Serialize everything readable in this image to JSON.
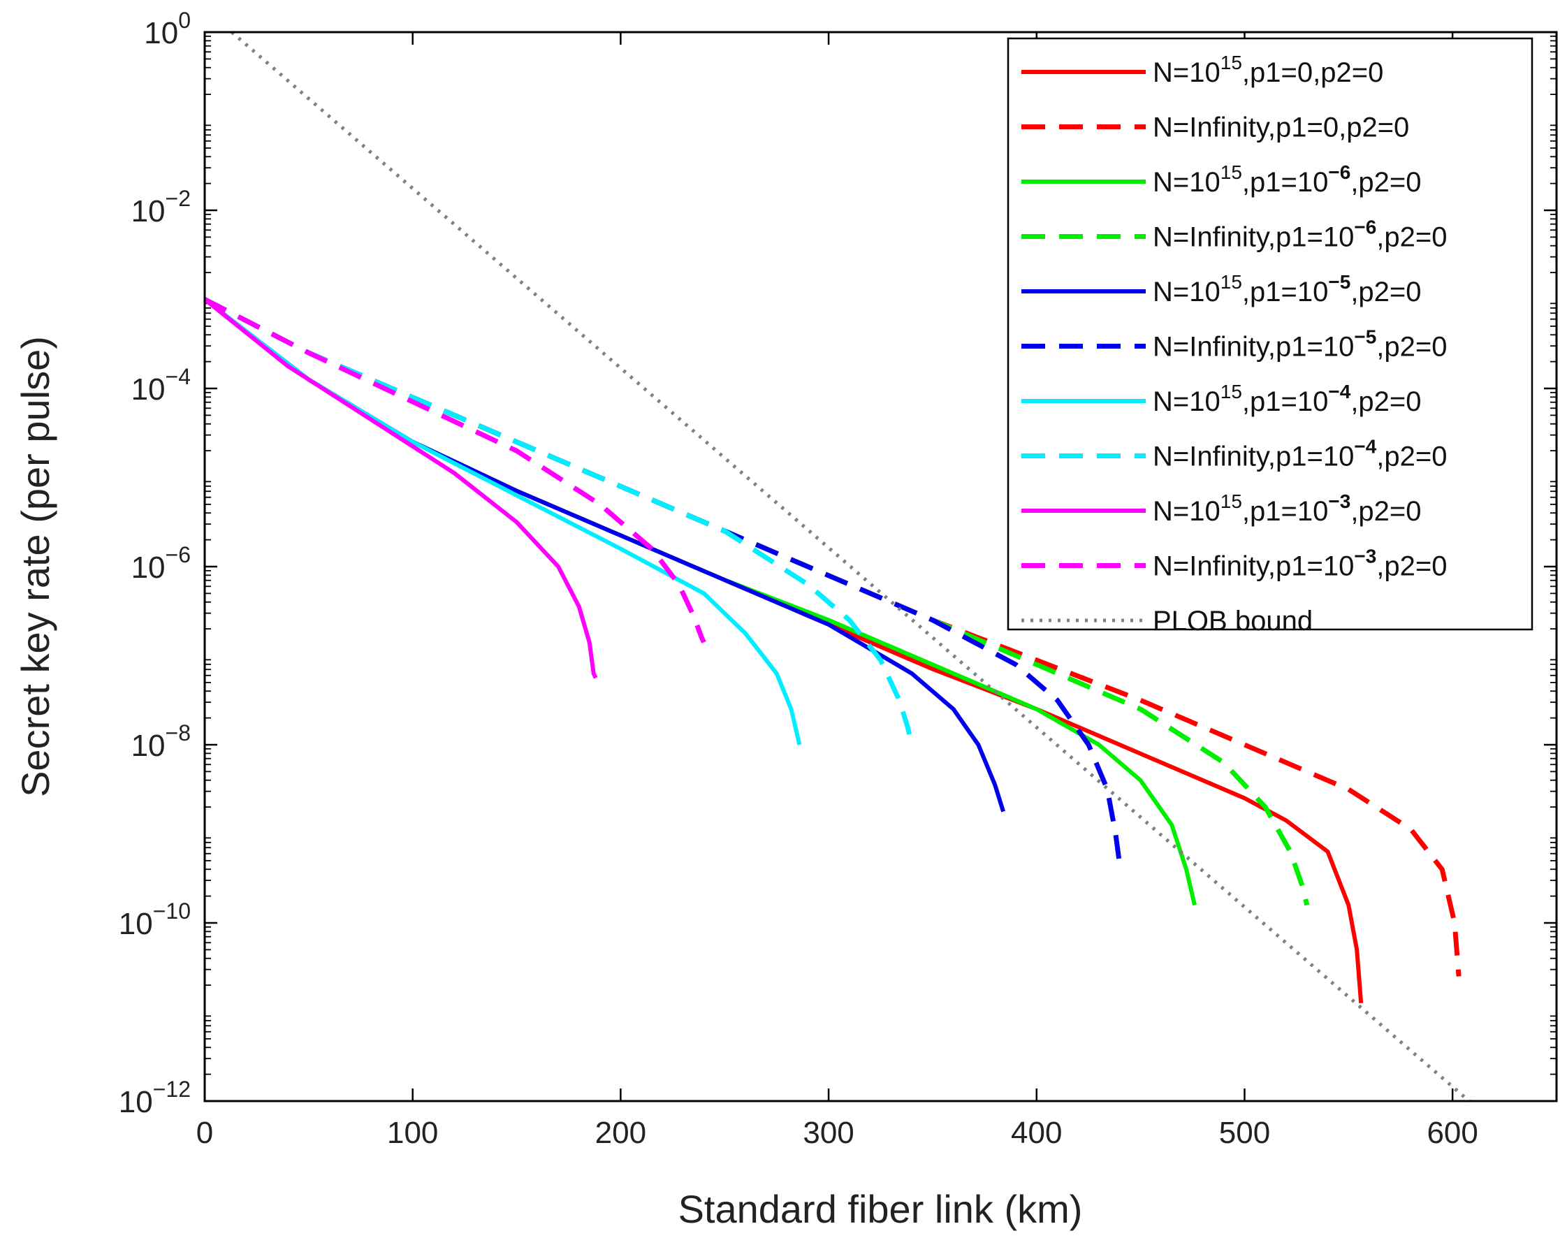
{
  "chart_data": {
    "type": "line",
    "xlabel": "Standard fiber link (km)",
    "ylabel": "Secret key rate (per pulse)",
    "xlim": [
      0,
      650
    ],
    "ylim_log10": [
      -12,
      0
    ],
    "xticks": [
      0,
      100,
      200,
      300,
      400,
      500,
      600
    ],
    "xtick_labels": [
      "0",
      "100",
      "200",
      "300",
      "400",
      "500",
      "600"
    ],
    "yticks": [
      {
        "base": "10",
        "exp": "0",
        "value_log10": 0
      },
      {
        "base": "10",
        "exp": "−2",
        "value_log10": -2
      },
      {
        "base": "10",
        "exp": "−4",
        "value_log10": -4
      },
      {
        "base": "10",
        "exp": "−6",
        "value_log10": -6
      },
      {
        "base": "10",
        "exp": "−8",
        "value_log10": -8
      },
      {
        "base": "10",
        "exp": "−10",
        "value_log10": -10
      },
      {
        "base": "10",
        "exp": "−12",
        "value_log10": -12
      }
    ],
    "legend_position": "top-right",
    "series": [
      {
        "name": "N=10^15,p1=0,p2=0",
        "color": "#ff0000",
        "dash": "solid",
        "label_parts": [
          {
            "t": "N=10"
          },
          {
            "t": "15",
            "sup": true
          },
          {
            "t": ",p1=0,p2=0"
          }
        ],
        "x": [
          0,
          50,
          100,
          150,
          200,
          250,
          300,
          350,
          400,
          450,
          500,
          520,
          540,
          550,
          554,
          556
        ],
        "y_log10": [
          -3.0,
          -3.9,
          -4.6,
          -5.15,
          -5.65,
          -6.15,
          -6.65,
          -7.15,
          -7.6,
          -8.1,
          -8.6,
          -8.85,
          -9.2,
          -9.8,
          -10.3,
          -10.9
        ]
      },
      {
        "name": "N=Infinity,p1=0,p2=0",
        "color": "#ff0000",
        "dash": "dashed",
        "label_parts": [
          {
            "t": "N=Infinity,p1=0,p2=0"
          }
        ],
        "x": [
          0,
          50,
          100,
          150,
          200,
          250,
          300,
          350,
          400,
          450,
          500,
          550,
          580,
          595,
          601,
          603
        ],
        "y_log10": [
          -3.0,
          -3.6,
          -4.1,
          -4.6,
          -5.1,
          -5.6,
          -6.1,
          -6.6,
          -7.05,
          -7.5,
          -8.0,
          -8.5,
          -8.95,
          -9.4,
          -10.0,
          -10.6
        ]
      },
      {
        "name": "N=10^15,p1=10^-6,p2=0",
        "color": "#00ee00",
        "dash": "solid",
        "label_parts": [
          {
            "t": "N=10"
          },
          {
            "t": "15",
            "sup": true
          },
          {
            "t": ",p1=10"
          },
          {
            "t": "−6",
            "sup": true,
            "bold": true
          },
          {
            "t": ",p2=0"
          }
        ],
        "x": [
          0,
          50,
          100,
          150,
          200,
          250,
          300,
          350,
          400,
          430,
          450,
          465,
          472,
          476
        ],
        "y_log10": [
          -3.0,
          -3.9,
          -4.6,
          -5.15,
          -5.65,
          -6.15,
          -6.6,
          -7.1,
          -7.6,
          -8.0,
          -8.4,
          -8.9,
          -9.4,
          -9.8
        ]
      },
      {
        "name": "N=Infinity,p1=10^-6,p2=0",
        "color": "#00ee00",
        "dash": "dashed",
        "label_parts": [
          {
            "t": "N=Infinity,p1=10"
          },
          {
            "t": "−6",
            "sup": true,
            "bold": true
          },
          {
            "t": ",p2=0"
          }
        ],
        "x": [
          0,
          50,
          100,
          150,
          200,
          250,
          300,
          350,
          400,
          450,
          490,
          510,
          522,
          528,
          530
        ],
        "y_log10": [
          -3.0,
          -3.6,
          -4.1,
          -4.6,
          -5.1,
          -5.6,
          -6.1,
          -6.6,
          -7.1,
          -7.6,
          -8.2,
          -8.7,
          -9.2,
          -9.6,
          -9.8
        ]
      },
      {
        "name": "N=10^15,p1=10^-5,p2=0",
        "color": "#0000ee",
        "dash": "solid",
        "label_parts": [
          {
            "t": "N=10"
          },
          {
            "t": "15",
            "sup": true
          },
          {
            "t": ",p1=10"
          },
          {
            "t": "−5",
            "sup": true,
            "bold": true
          },
          {
            "t": ",p2=0"
          }
        ],
        "x": [
          0,
          50,
          100,
          150,
          200,
          250,
          300,
          340,
          360,
          372,
          380,
          384
        ],
        "y_log10": [
          -3.0,
          -3.9,
          -4.6,
          -5.15,
          -5.65,
          -6.15,
          -6.65,
          -7.2,
          -7.6,
          -8.0,
          -8.45,
          -8.75
        ]
      },
      {
        "name": "N=Infinity,p1=10^-5,p2=0",
        "color": "#0000ee",
        "dash": "dashed",
        "label_parts": [
          {
            "t": "N=Infinity,p1=10"
          },
          {
            "t": "−5",
            "sup": true,
            "bold": true
          },
          {
            "t": ",p2=0"
          }
        ],
        "x": [
          0,
          50,
          100,
          150,
          200,
          250,
          300,
          350,
          390,
          410,
          425,
          434,
          438,
          440
        ],
        "y_log10": [
          -3.0,
          -3.6,
          -4.1,
          -4.6,
          -5.1,
          -5.6,
          -6.1,
          -6.6,
          -7.1,
          -7.5,
          -8.0,
          -8.5,
          -9.0,
          -9.35
        ]
      },
      {
        "name": "N=10^15,p1=10^-4,p2=0",
        "color": "#00eeff",
        "dash": "solid",
        "label_parts": [
          {
            "t": "N=10"
          },
          {
            "t": "15",
            "sup": true
          },
          {
            "t": ",p1=10"
          },
          {
            "t": "−4",
            "sup": true,
            "bold": true
          },
          {
            "t": ",p2=0"
          }
        ],
        "x": [
          0,
          50,
          100,
          150,
          200,
          240,
          260,
          275,
          282,
          286
        ],
        "y_log10": [
          -3.0,
          -3.9,
          -4.6,
          -5.2,
          -5.8,
          -6.3,
          -6.75,
          -7.2,
          -7.6,
          -8.0
        ]
      },
      {
        "name": "N=Infinity,p1=10^-4,p2=0",
        "color": "#00eeff",
        "dash": "dashed",
        "label_parts": [
          {
            "t": "N=Infinity,p1=10"
          },
          {
            "t": "−4",
            "sup": true,
            "bold": true
          },
          {
            "t": ",p2=0"
          }
        ],
        "x": [
          0,
          50,
          100,
          150,
          200,
          250,
          290,
          310,
          325,
          334,
          338,
          340
        ],
        "y_log10": [
          -3.0,
          -3.6,
          -4.1,
          -4.6,
          -5.1,
          -5.6,
          -6.2,
          -6.6,
          -7.05,
          -7.5,
          -7.8,
          -8.0
        ]
      },
      {
        "name": "N=10^15,p1=10^-3,p2=0",
        "color": "#ff00ff",
        "dash": "solid",
        "label_parts": [
          {
            "t": "N=10"
          },
          {
            "t": "15",
            "sup": true
          },
          {
            "t": ",p1=10"
          },
          {
            "t": "−3",
            "sup": true,
            "bold": true
          },
          {
            "t": ",p2=0"
          }
        ],
        "x": [
          0,
          40,
          80,
          120,
          150,
          170,
          180,
          185,
          187,
          188
        ],
        "y_log10": [
          -3.0,
          -3.75,
          -4.35,
          -4.95,
          -5.5,
          -6.0,
          -6.45,
          -6.85,
          -7.2,
          -7.25
        ]
      },
      {
        "name": "N=Infinity,p1=10^-3,p2=0",
        "color": "#ff00ff",
        "dash": "dashed",
        "label_parts": [
          {
            "t": "N=Infinity,p1=10"
          },
          {
            "t": "−3",
            "sup": true,
            "bold": true
          },
          {
            "t": ",p2=0"
          }
        ],
        "x": [
          0,
          50,
          100,
          150,
          190,
          215,
          228,
          235,
          239,
          240
        ],
        "y_log10": [
          -3.0,
          -3.6,
          -4.15,
          -4.7,
          -5.3,
          -5.8,
          -6.2,
          -6.55,
          -6.8,
          -6.85
        ]
      },
      {
        "name": "PLOB bound",
        "color": "#808080",
        "dash": "dotted",
        "label_parts": [
          {
            "t": "PLOB bound"
          }
        ],
        "x": [
          13,
          608
        ],
        "y_log10": [
          0.0,
          -12.0
        ]
      }
    ]
  }
}
